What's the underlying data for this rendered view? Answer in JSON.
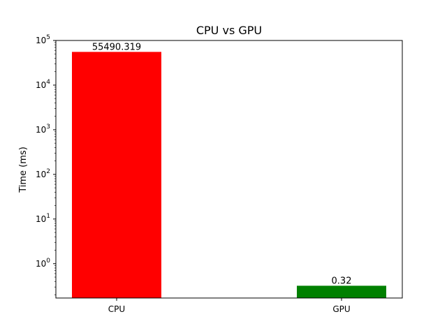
{
  "chart_data": {
    "type": "bar",
    "title": "CPU vs GPU",
    "xlabel": "",
    "ylabel": "Time (ms)",
    "yscale": "log",
    "ylim": [
      0.17,
      100000
    ],
    "categories": [
      "CPU",
      "GPU"
    ],
    "values": [
      55490.319,
      0.32
    ],
    "value_labels": [
      "55490.319",
      "0.32"
    ],
    "colors": [
      "#ff0000",
      "#008000"
    ],
    "y_ticks": [
      {
        "base": "10",
        "exp": "0"
      },
      {
        "base": "10",
        "exp": "1"
      },
      {
        "base": "10",
        "exp": "2"
      },
      {
        "base": "10",
        "exp": "3"
      },
      {
        "base": "10",
        "exp": "4"
      },
      {
        "base": "10",
        "exp": "5"
      }
    ],
    "grid": false,
    "legend": "none"
  }
}
